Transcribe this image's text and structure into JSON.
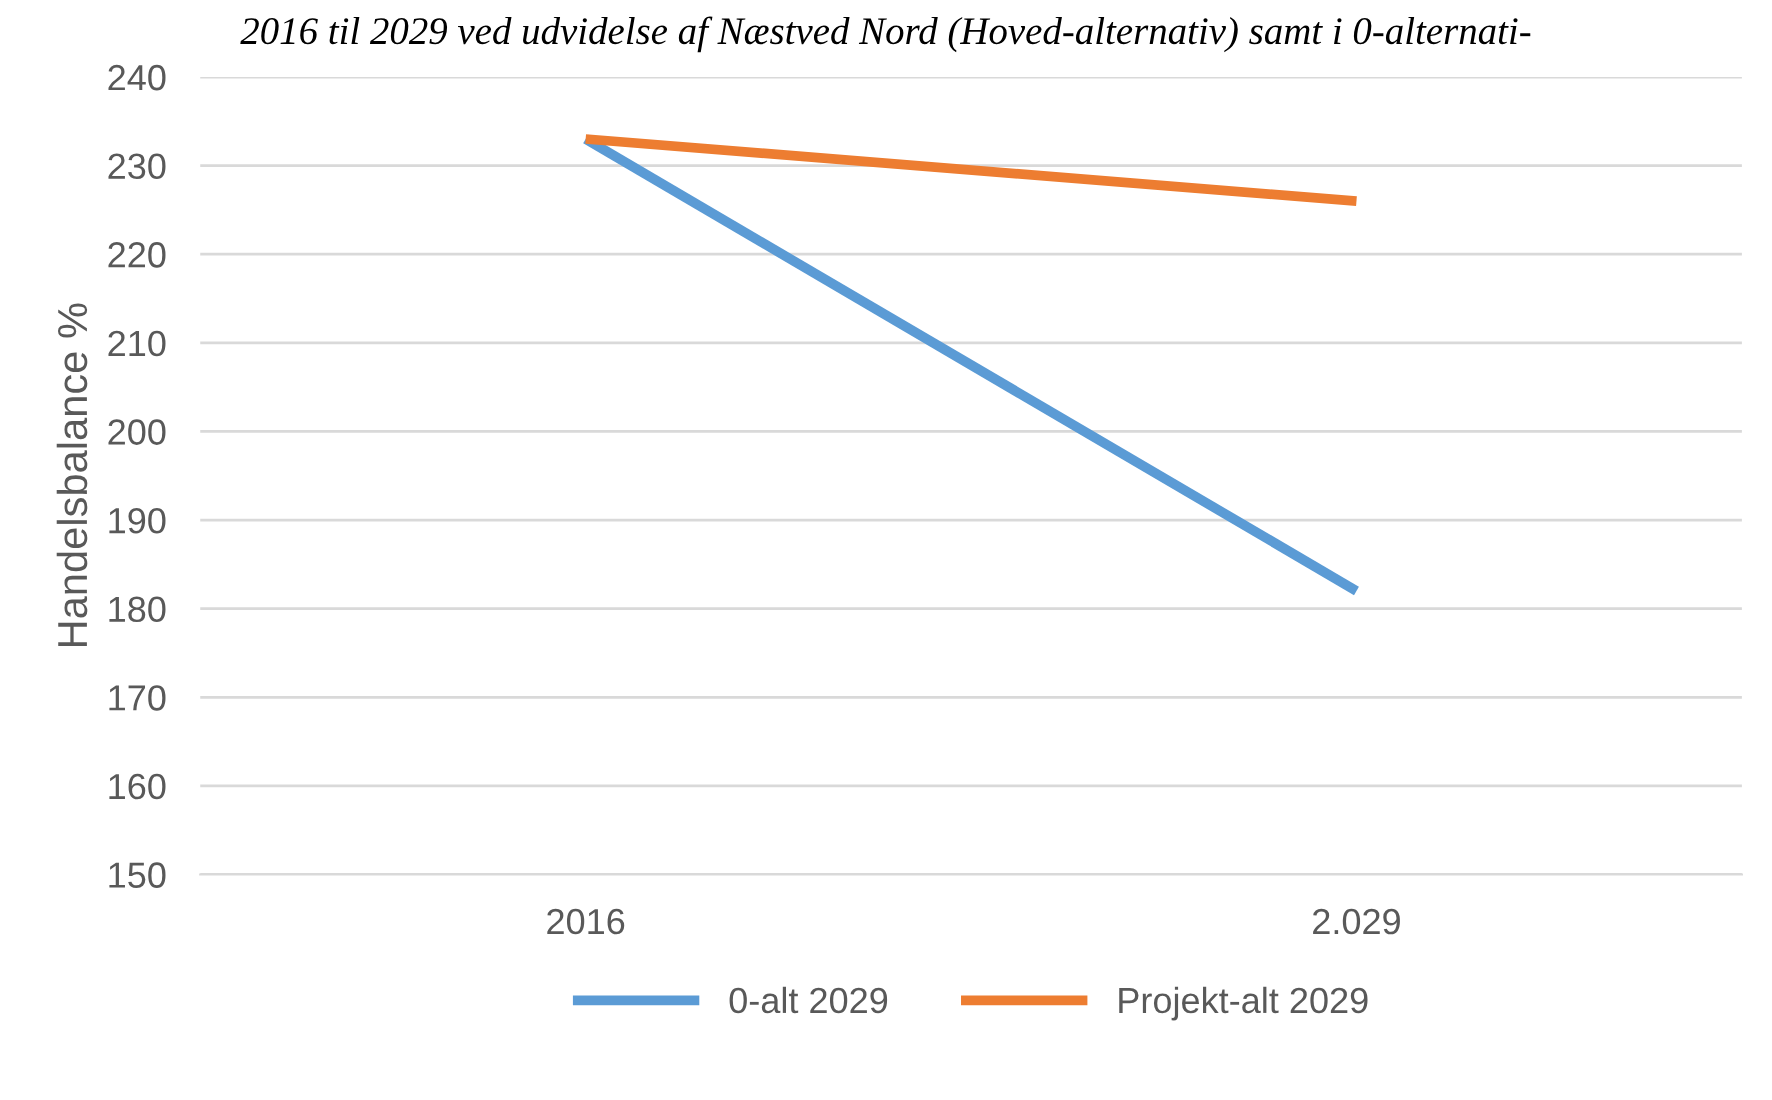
{
  "chart_data": {
    "type": "line",
    "title": "2016 til 2029 ved udvidelse af Næstved Nord (Hoved-alternativ) samt i 0-alternati-",
    "ylabel": "Handelsbalance %",
    "categories": [
      "2016",
      "2.029"
    ],
    "series": [
      {
        "name": "0-alt 2029",
        "color": "#5b9bd5",
        "values": [
          233,
          182
        ]
      },
      {
        "name": "Projekt-alt 2029",
        "color": "#ed7d31",
        "values": [
          233,
          226
        ]
      }
    ],
    "ylim": [
      150,
      240
    ],
    "yticks": [
      150,
      160,
      170,
      180,
      190,
      200,
      210,
      220,
      230,
      240
    ],
    "grid": "y",
    "legend": "bottom",
    "marker": "none",
    "line_style": "solid"
  }
}
